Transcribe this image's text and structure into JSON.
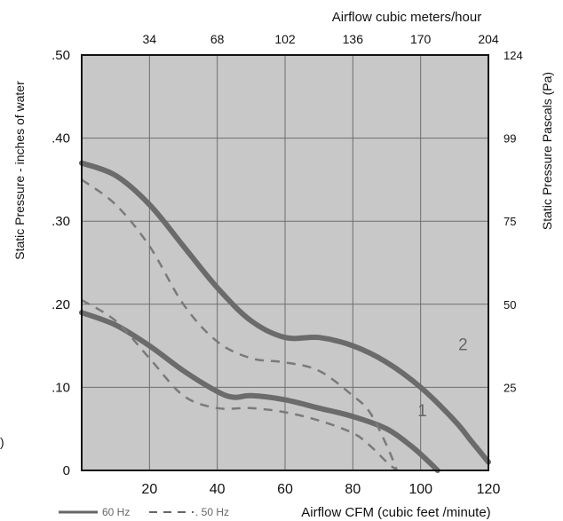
{
  "chart_data": {
    "type": "line",
    "xlabel": "Airflow  CFM (cubic feet /minute)",
    "ylabel": "Static Pressure - inches of water",
    "x_top_label": "Airflow cubic meters/hour",
    "y_right_label": "Static Pressure Pascals (Pa)",
    "xlim": [
      0,
      120
    ],
    "ylim": [
      0,
      0.5
    ],
    "x_ticks": [
      {
        "value": 20,
        "label": "20"
      },
      {
        "value": 40,
        "label": "40"
      },
      {
        "value": 60,
        "label": "60"
      },
      {
        "value": 80,
        "label": "80"
      },
      {
        "value": 100,
        "label": "100"
      },
      {
        "value": 120,
        "label": "120"
      }
    ],
    "y_ticks": [
      {
        "value": 0,
        "label": "0"
      },
      {
        "value": 0.1,
        "label": ".10"
      },
      {
        "value": 0.2,
        "label": ".20"
      },
      {
        "value": 0.3,
        "label": ".30"
      },
      {
        "value": 0.4,
        "label": ".40"
      },
      {
        "value": 0.5,
        "label": ".50"
      }
    ],
    "x_top_ticks": [
      {
        "value": 20,
        "label": "34"
      },
      {
        "value": 40,
        "label": "68"
      },
      {
        "value": 60,
        "label": "102"
      },
      {
        "value": 80,
        "label": "136"
      },
      {
        "value": 100,
        "label": "170"
      },
      {
        "value": 120,
        "label": "204"
      }
    ],
    "y_right_ticks": [
      {
        "value": 0.1,
        "label": "25"
      },
      {
        "value": 0.2,
        "label": "50"
      },
      {
        "value": 0.3,
        "label": "75"
      },
      {
        "value": 0.4,
        "label": "99"
      },
      {
        "value": 0.5,
        "label": "124"
      }
    ],
    "grid": true,
    "legend": {
      "placement": "bottom-left",
      "entries": [
        {
          "label": "60 Hz",
          "style": "solid"
        },
        {
          "label": ". 50 Hz",
          "style": "dashed"
        }
      ]
    },
    "series": [
      {
        "label": "2",
        "frequency": "60 Hz",
        "style": "solid",
        "points": [
          [
            0,
            0.37
          ],
          [
            10,
            0.355
          ],
          [
            20,
            0.32
          ],
          [
            30,
            0.27
          ],
          [
            40,
            0.22
          ],
          [
            50,
            0.18
          ],
          [
            60,
            0.16
          ],
          [
            70,
            0.16
          ],
          [
            80,
            0.15
          ],
          [
            90,
            0.13
          ],
          [
            100,
            0.1
          ],
          [
            110,
            0.06
          ],
          [
            115,
            0.035
          ],
          [
            120,
            0.01
          ]
        ]
      },
      {
        "label": "1",
        "frequency": "60 Hz",
        "style": "solid",
        "points": [
          [
            0,
            0.19
          ],
          [
            10,
            0.175
          ],
          [
            20,
            0.15
          ],
          [
            30,
            0.12
          ],
          [
            40,
            0.095
          ],
          [
            45,
            0.088
          ],
          [
            50,
            0.09
          ],
          [
            60,
            0.085
          ],
          [
            70,
            0.075
          ],
          [
            80,
            0.065
          ],
          [
            90,
            0.05
          ],
          [
            97,
            0.03
          ],
          [
            102,
            0.012
          ],
          [
            105,
            0
          ]
        ]
      },
      {
        "frequency": "50 Hz",
        "style": "dashed",
        "points": [
          [
            0,
            0.35
          ],
          [
            10,
            0.32
          ],
          [
            20,
            0.27
          ],
          [
            30,
            0.2
          ],
          [
            40,
            0.155
          ],
          [
            50,
            0.135
          ],
          [
            60,
            0.13
          ],
          [
            70,
            0.12
          ],
          [
            80,
            0.09
          ],
          [
            85,
            0.07
          ],
          [
            90,
            0.03
          ],
          [
            93,
            0
          ]
        ]
      },
      {
        "frequency": "50 Hz",
        "style": "dashed",
        "points": [
          [
            0,
            0.205
          ],
          [
            10,
            0.18
          ],
          [
            20,
            0.135
          ],
          [
            30,
            0.09
          ],
          [
            40,
            0.075
          ],
          [
            50,
            0.075
          ],
          [
            60,
            0.07
          ],
          [
            70,
            0.06
          ],
          [
            80,
            0.045
          ],
          [
            85,
            0.03
          ],
          [
            90,
            0.01
          ],
          [
            93,
            0
          ]
        ]
      }
    ]
  },
  "edge_text": ")"
}
